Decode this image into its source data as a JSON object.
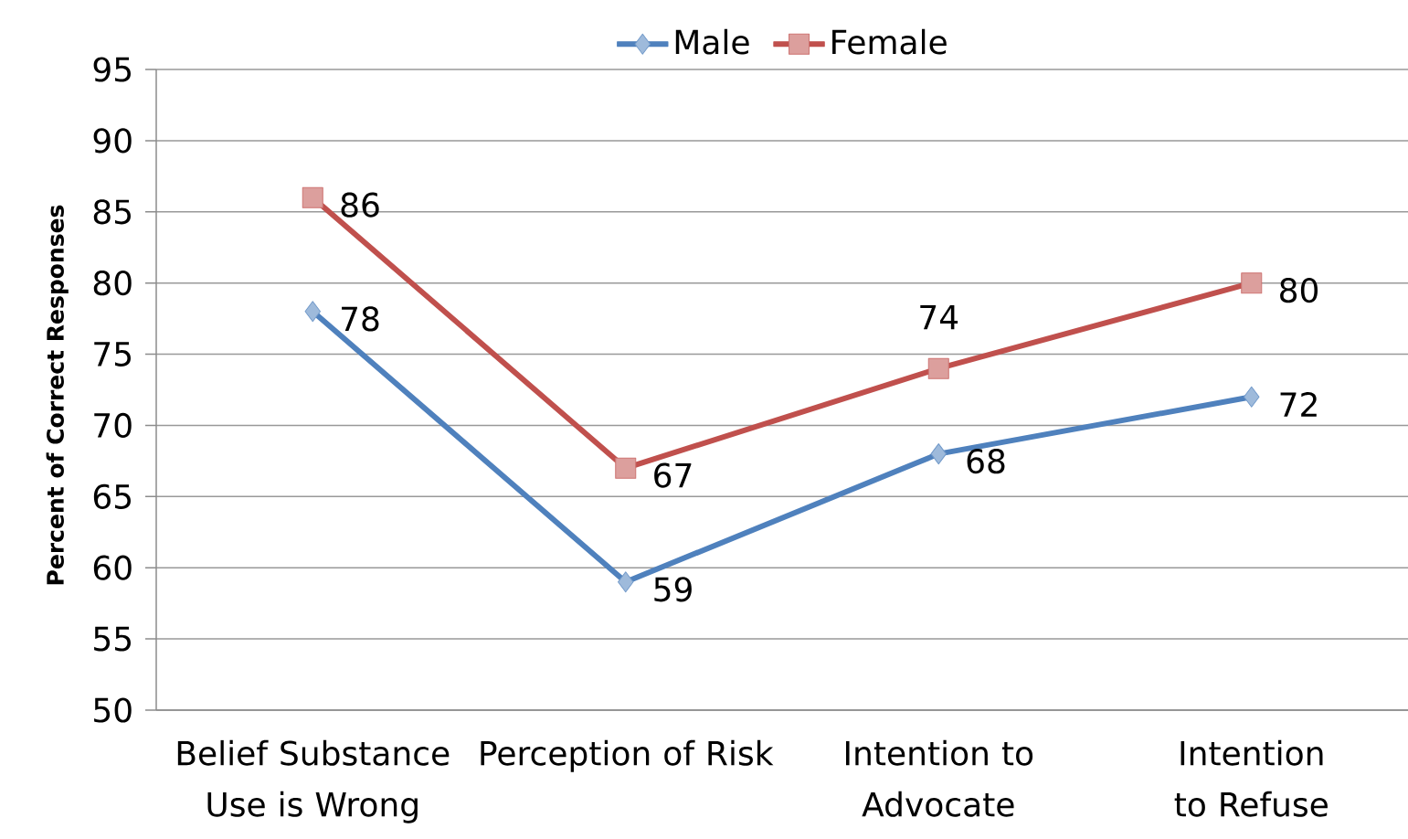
{
  "chart_data": {
    "type": "line",
    "ylabel": "Percent of Correct Responses",
    "categories": [
      "Belief Substance Use is Wrong",
      "Perception of Risk",
      "Intention to Advocate",
      "Intention to Refuse"
    ],
    "series": [
      {
        "name": "Male",
        "color": "#4f81bd",
        "marker": "diamond",
        "values": [
          78,
          59,
          68,
          72
        ]
      },
      {
        "name": "Female",
        "color": "#c0504d",
        "marker": "square",
        "values": [
          86,
          67,
          74,
          80
        ]
      }
    ],
    "ylim": [
      50,
      95
    ],
    "yticks": [
      50,
      55,
      60,
      65,
      70,
      75,
      80,
      85,
      90,
      95
    ],
    "grid": "y",
    "legend": "top",
    "data_labels": true,
    "line_style": "solid"
  }
}
